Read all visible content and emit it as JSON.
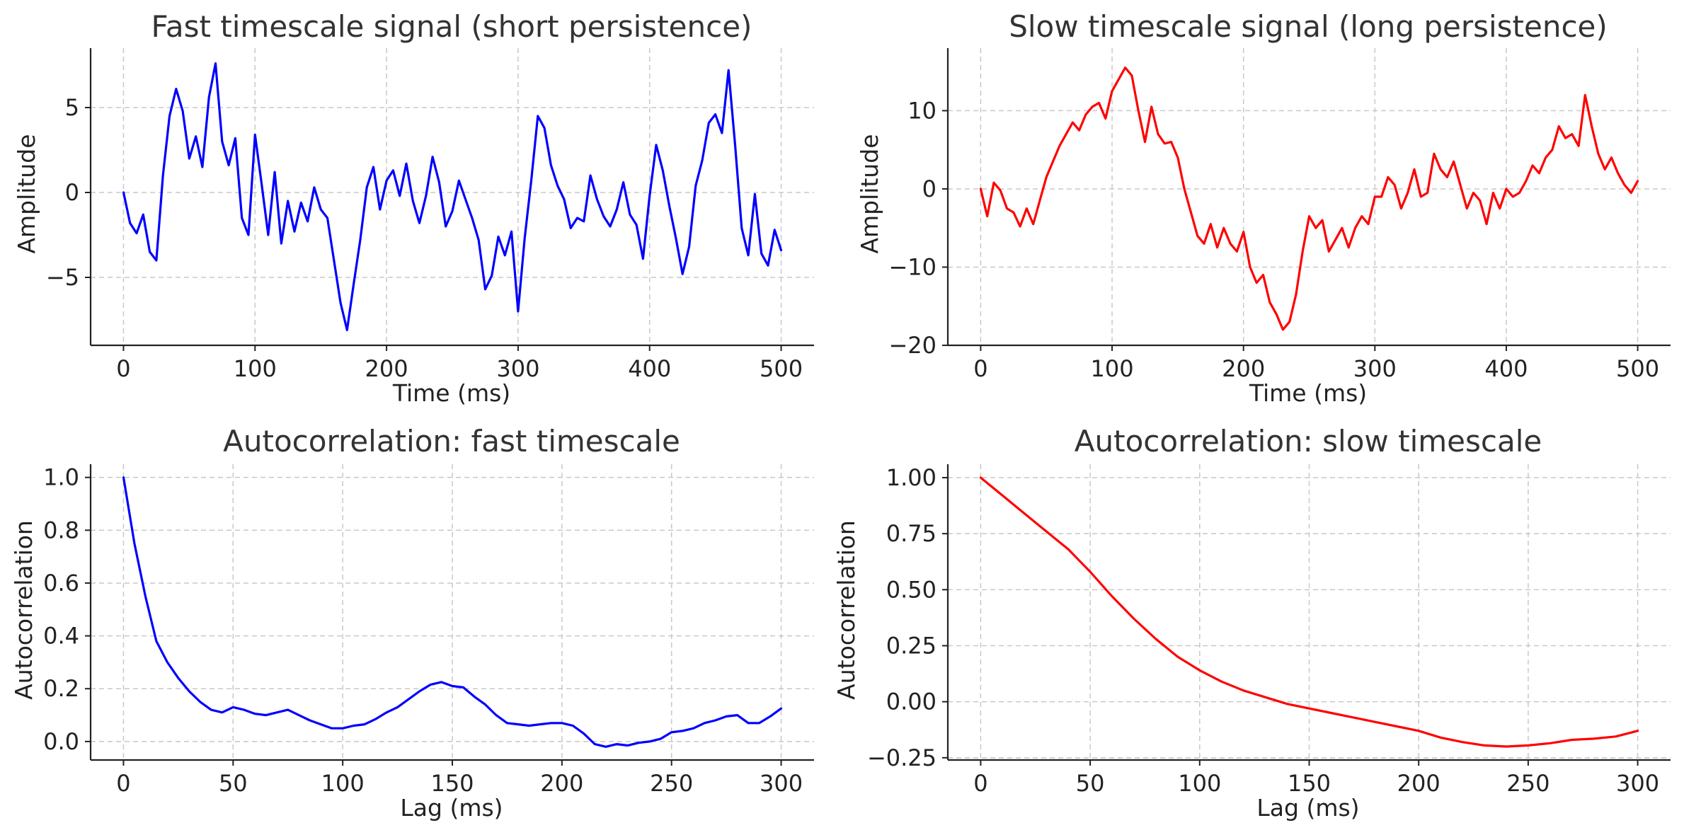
{
  "chart_data": [
    {
      "type": "line",
      "title": "Fast timescale signal (short persistence)",
      "xlabel": "Time (ms)",
      "ylabel": "Amplitude",
      "xlim": [
        -25,
        525
      ],
      "ylim": [
        -9,
        8.5
      ],
      "xticks": [
        0,
        100,
        200,
        300,
        400,
        500
      ],
      "yticks": [
        -5,
        0,
        5
      ],
      "ytick_labels": [
        "−5",
        "0",
        "5"
      ],
      "grid": true,
      "series": [
        {
          "color": "#0000ff",
          "x": [
            0,
            5,
            10,
            15,
            20,
            25,
            30,
            35,
            40,
            45,
            50,
            55,
            60,
            65,
            70,
            75,
            80,
            85,
            90,
            95,
            100,
            105,
            110,
            115,
            120,
            125,
            130,
            135,
            140,
            145,
            150,
            155,
            160,
            165,
            170,
            175,
            180,
            185,
            190,
            195,
            200,
            205,
            210,
            215,
            220,
            225,
            230,
            235,
            240,
            245,
            250,
            255,
            260,
            265,
            270,
            275,
            280,
            285,
            290,
            295,
            300,
            305,
            310,
            315,
            320,
            325,
            330,
            335,
            340,
            345,
            350,
            355,
            360,
            365,
            370,
            375,
            380,
            385,
            390,
            395,
            400,
            405,
            410,
            415,
            420,
            425,
            430,
            435,
            440,
            445,
            450,
            455,
            460,
            465,
            470,
            475,
            480,
            485,
            490,
            495,
            500
          ],
          "y": [
            0,
            -1.8,
            -2.4,
            -1.3,
            -3.5,
            -4,
            1,
            4.5,
            6.1,
            4.8,
            2,
            3.3,
            1.5,
            5.6,
            7.6,
            3,
            1.6,
            3.2,
            -1.5,
            -2.5,
            3.4,
            0.5,
            -2.5,
            1.2,
            -3,
            -0.5,
            -2.3,
            -0.6,
            -1.7,
            0.3,
            -1,
            -1.5,
            -4,
            -6.5,
            -8.1,
            -5.4,
            -2.8,
            0.3,
            1.5,
            -1,
            0.7,
            1.3,
            -0.2,
            1.7,
            -0.5,
            -1.8,
            -0.2,
            2.1,
            0.6,
            -2,
            -1.1,
            0.7,
            -0.4,
            -1.5,
            -2.8,
            -5.7,
            -4.9,
            -2.6,
            -3.7,
            -2.3,
            -7,
            -2.7,
            0.7,
            4.5,
            3.8,
            1.6,
            0.4,
            -0.4,
            -2.1,
            -1.5,
            -1.7,
            1,
            -0.4,
            -1.4,
            -2,
            -1,
            0.6,
            -1.3,
            -1.9,
            -3.9,
            -0.2,
            2.8,
            1.3,
            -0.8,
            -2.7,
            -4.8,
            -3.2,
            0.4,
            1.9,
            4.1,
            4.6,
            3.5,
            7.2,
            2.8,
            -2.1,
            -3.7,
            -0.1,
            -3.6,
            -4.3,
            -2.2,
            -3.4
          ]
        }
      ]
    },
    {
      "type": "line",
      "title": "Slow timescale signal (long persistence)",
      "xlabel": "Time (ms)",
      "ylabel": "Amplitude",
      "xlim": [
        -25,
        525
      ],
      "ylim": [
        -20,
        18
      ],
      "xticks": [
        0,
        100,
        200,
        300,
        400,
        500
      ],
      "yticks": [
        -20,
        -10,
        0,
        10
      ],
      "ytick_labels": [
        "−20",
        "−10",
        "0",
        "10"
      ],
      "grid": true,
      "series": [
        {
          "color": "#ff0000",
          "x": [
            0,
            5,
            10,
            15,
            20,
            25,
            30,
            35,
            40,
            45,
            50,
            55,
            60,
            65,
            70,
            75,
            80,
            85,
            90,
            95,
            100,
            105,
            110,
            115,
            120,
            125,
            130,
            135,
            140,
            145,
            150,
            155,
            160,
            165,
            170,
            175,
            180,
            185,
            190,
            195,
            200,
            205,
            210,
            215,
            220,
            225,
            230,
            235,
            240,
            245,
            250,
            255,
            260,
            265,
            270,
            275,
            280,
            285,
            290,
            295,
            300,
            305,
            310,
            315,
            320,
            325,
            330,
            335,
            340,
            345,
            350,
            355,
            360,
            365,
            370,
            375,
            380,
            385,
            390,
            395,
            400,
            405,
            410,
            415,
            420,
            425,
            430,
            435,
            440,
            445,
            450,
            455,
            460,
            465,
            470,
            475,
            480,
            485,
            490,
            495,
            500
          ],
          "y": [
            0,
            -3.5,
            0.8,
            -0.2,
            -2.5,
            -3,
            -4.8,
            -2.5,
            -4.5,
            -1.5,
            1.5,
            3.5,
            5.5,
            7,
            8.5,
            7.5,
            9.5,
            10.5,
            11,
            9,
            12.5,
            14,
            15.5,
            14.5,
            10,
            6,
            10.5,
            7,
            5.8,
            6,
            4,
            0,
            -3,
            -6,
            -7,
            -4.5,
            -7.5,
            -5,
            -7,
            -8,
            -5.5,
            -10,
            -12,
            -11,
            -14.5,
            -16,
            -18,
            -17,
            -13.5,
            -8,
            -3.5,
            -5,
            -4,
            -8,
            -6.5,
            -5,
            -7.5,
            -5,
            -3.5,
            -4.5,
            -1,
            -1,
            1.5,
            0.5,
            -2.5,
            -0.5,
            2.5,
            -1,
            -0.5,
            4.5,
            2.5,
            1.5,
            3.5,
            0.5,
            -2.5,
            -0.5,
            -1.5,
            -4.5,
            -0.5,
            -2.5,
            0,
            -1,
            -0.5,
            1,
            3,
            2,
            4,
            5,
            8,
            6.5,
            7,
            5.5,
            12,
            8,
            4.5,
            2.5,
            4,
            2,
            0.5,
            -0.5,
            1
          ]
        }
      ]
    },
    {
      "type": "line",
      "title": "Autocorrelation: fast timescale",
      "xlabel": "Lag (ms)",
      "ylabel": "Autocorrelation",
      "xlim": [
        -15,
        315
      ],
      "ylim": [
        -0.07,
        1.05
      ],
      "xticks": [
        0,
        50,
        100,
        150,
        200,
        250,
        300
      ],
      "yticks": [
        0,
        0.2,
        0.4,
        0.6,
        0.8,
        1
      ],
      "ytick_labels": [
        "0.0",
        "0.2",
        "0.4",
        "0.6",
        "0.8",
        "1.0"
      ],
      "grid": true,
      "series": [
        {
          "color": "#0000ff",
          "x": [
            0,
            5,
            10,
            15,
            20,
            25,
            30,
            35,
            40,
            45,
            50,
            55,
            60,
            65,
            70,
            75,
            80,
            85,
            90,
            95,
            100,
            105,
            110,
            115,
            120,
            125,
            130,
            135,
            140,
            145,
            150,
            155,
            160,
            165,
            170,
            175,
            180,
            185,
            190,
            195,
            200,
            205,
            210,
            215,
            220,
            225,
            230,
            235,
            240,
            245,
            250,
            255,
            260,
            265,
            270,
            275,
            280,
            285,
            290,
            295,
            300
          ],
          "y": [
            1,
            0.75,
            0.55,
            0.38,
            0.3,
            0.24,
            0.19,
            0.15,
            0.12,
            0.11,
            0.13,
            0.12,
            0.105,
            0.1,
            0.11,
            0.12,
            0.1,
            0.08,
            0.065,
            0.05,
            0.05,
            0.06,
            0.065,
            0.085,
            0.11,
            0.13,
            0.16,
            0.19,
            0.215,
            0.225,
            0.21,
            0.205,
            0.17,
            0.14,
            0.1,
            0.07,
            0.065,
            0.06,
            0.065,
            0.07,
            0.07,
            0.06,
            0.03,
            -0.01,
            -0.02,
            -0.01,
            -0.015,
            -0.005,
            0,
            0.01,
            0.035,
            0.04,
            0.05,
            0.07,
            0.08,
            0.095,
            0.1,
            0.07,
            0.07,
            0.095,
            0.125
          ]
        }
      ]
    },
    {
      "type": "line",
      "title": "Autocorrelation: slow timescale",
      "xlabel": "Lag (ms)",
      "ylabel": "Autocorrelation",
      "xlim": [
        -15,
        315
      ],
      "ylim": [
        -0.26,
        1.06
      ],
      "xticks": [
        0,
        50,
        100,
        150,
        200,
        250,
        300
      ],
      "yticks": [
        -0.25,
        0,
        0.25,
        0.5,
        0.75,
        1
      ],
      "ytick_labels": [
        "−0.25",
        "0.00",
        "0.25",
        "0.50",
        "0.75",
        "1.00"
      ],
      "grid": true,
      "series": [
        {
          "color": "#ff0000",
          "x": [
            0,
            10,
            20,
            30,
            40,
            50,
            60,
            70,
            80,
            90,
            100,
            110,
            120,
            130,
            140,
            150,
            160,
            170,
            180,
            190,
            200,
            210,
            220,
            230,
            240,
            250,
            260,
            270,
            280,
            290,
            300
          ],
          "y": [
            1,
            0.92,
            0.84,
            0.76,
            0.68,
            0.58,
            0.47,
            0.37,
            0.28,
            0.2,
            0.14,
            0.09,
            0.05,
            0.02,
            -0.01,
            -0.03,
            -0.05,
            -0.07,
            -0.09,
            -0.11,
            -0.13,
            -0.16,
            -0.18,
            -0.195,
            -0.2,
            -0.195,
            -0.185,
            -0.17,
            -0.165,
            -0.155,
            -0.13
          ]
        }
      ]
    }
  ]
}
